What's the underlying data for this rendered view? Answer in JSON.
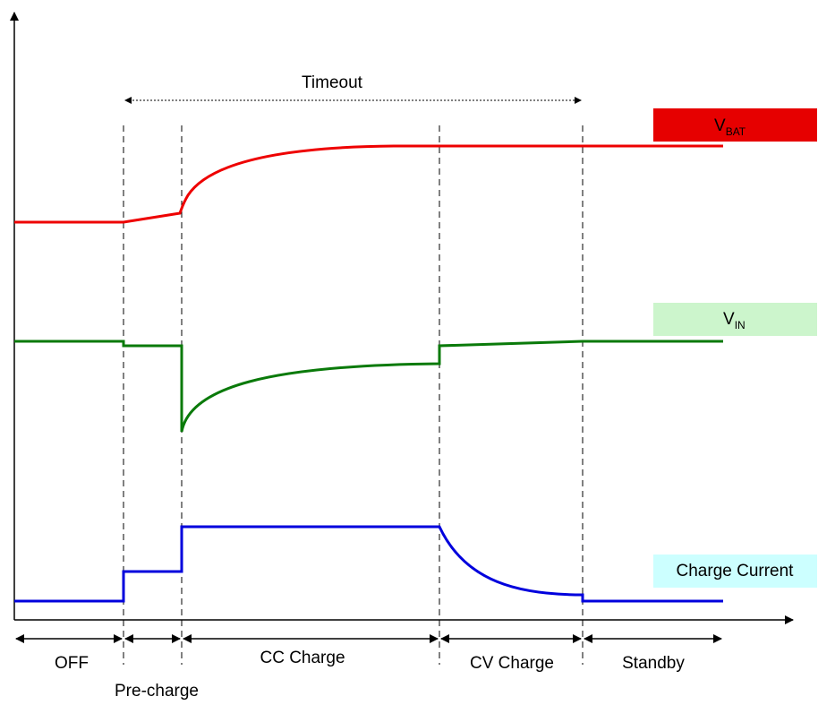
{
  "timeout_label": "Timeout",
  "phases": {
    "off": "OFF",
    "precharge": "Pre-charge",
    "cc": "CC Charge",
    "cv": "CV Charge",
    "standby": "Standby"
  },
  "legend": {
    "vbat": {
      "main": "V",
      "sub": "BAT",
      "bg": "#e60000",
      "line": "#ee0000"
    },
    "vin": {
      "main": "V",
      "sub": "IN",
      "bg": "#ccf5cc",
      "line": "#0a7a0a"
    },
    "current": {
      "text": "Charge Current",
      "bg": "#ccffff",
      "line": "#0000dd"
    }
  }
}
